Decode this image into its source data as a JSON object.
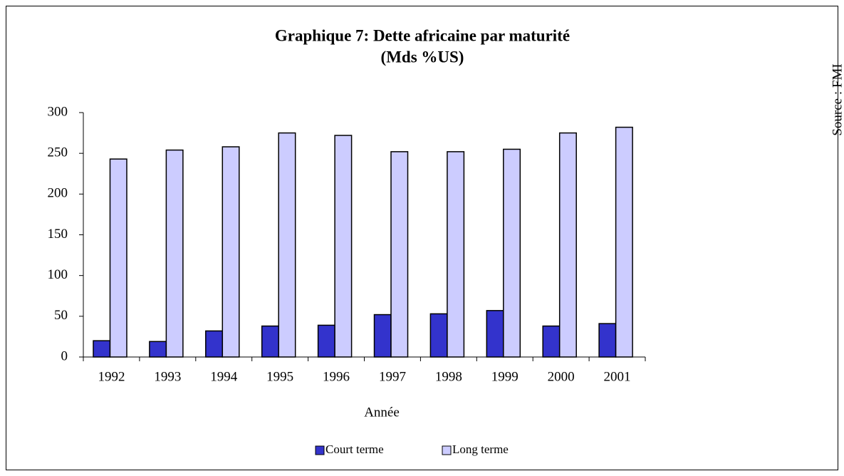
{
  "chart_data": {
    "type": "bar",
    "title": [
      "Graphique 7: Dette africaine par maturité",
      "(Mds %US)"
    ],
    "x_label": "Année",
    "source": "Source : FMI",
    "categories": [
      "1992",
      "1993",
      "1994",
      "1995",
      "1996",
      "1997",
      "1998",
      "1999",
      "2000",
      "2001"
    ],
    "series": [
      {
        "name": "Court terme",
        "color": "#3333cc",
        "values": [
          20,
          19,
          32,
          38,
          39,
          52,
          53,
          57,
          38,
          41
        ]
      },
      {
        "name": "Long terme",
        "color": "#ccccff",
        "values": [
          243,
          254,
          258,
          275,
          272,
          252,
          252,
          255,
          275,
          282
        ]
      }
    ],
    "ylim": [
      0,
      300
    ],
    "yticks": [
      0,
      50,
      100,
      150,
      200,
      250,
      300
    ],
    "legend": "bottom"
  }
}
